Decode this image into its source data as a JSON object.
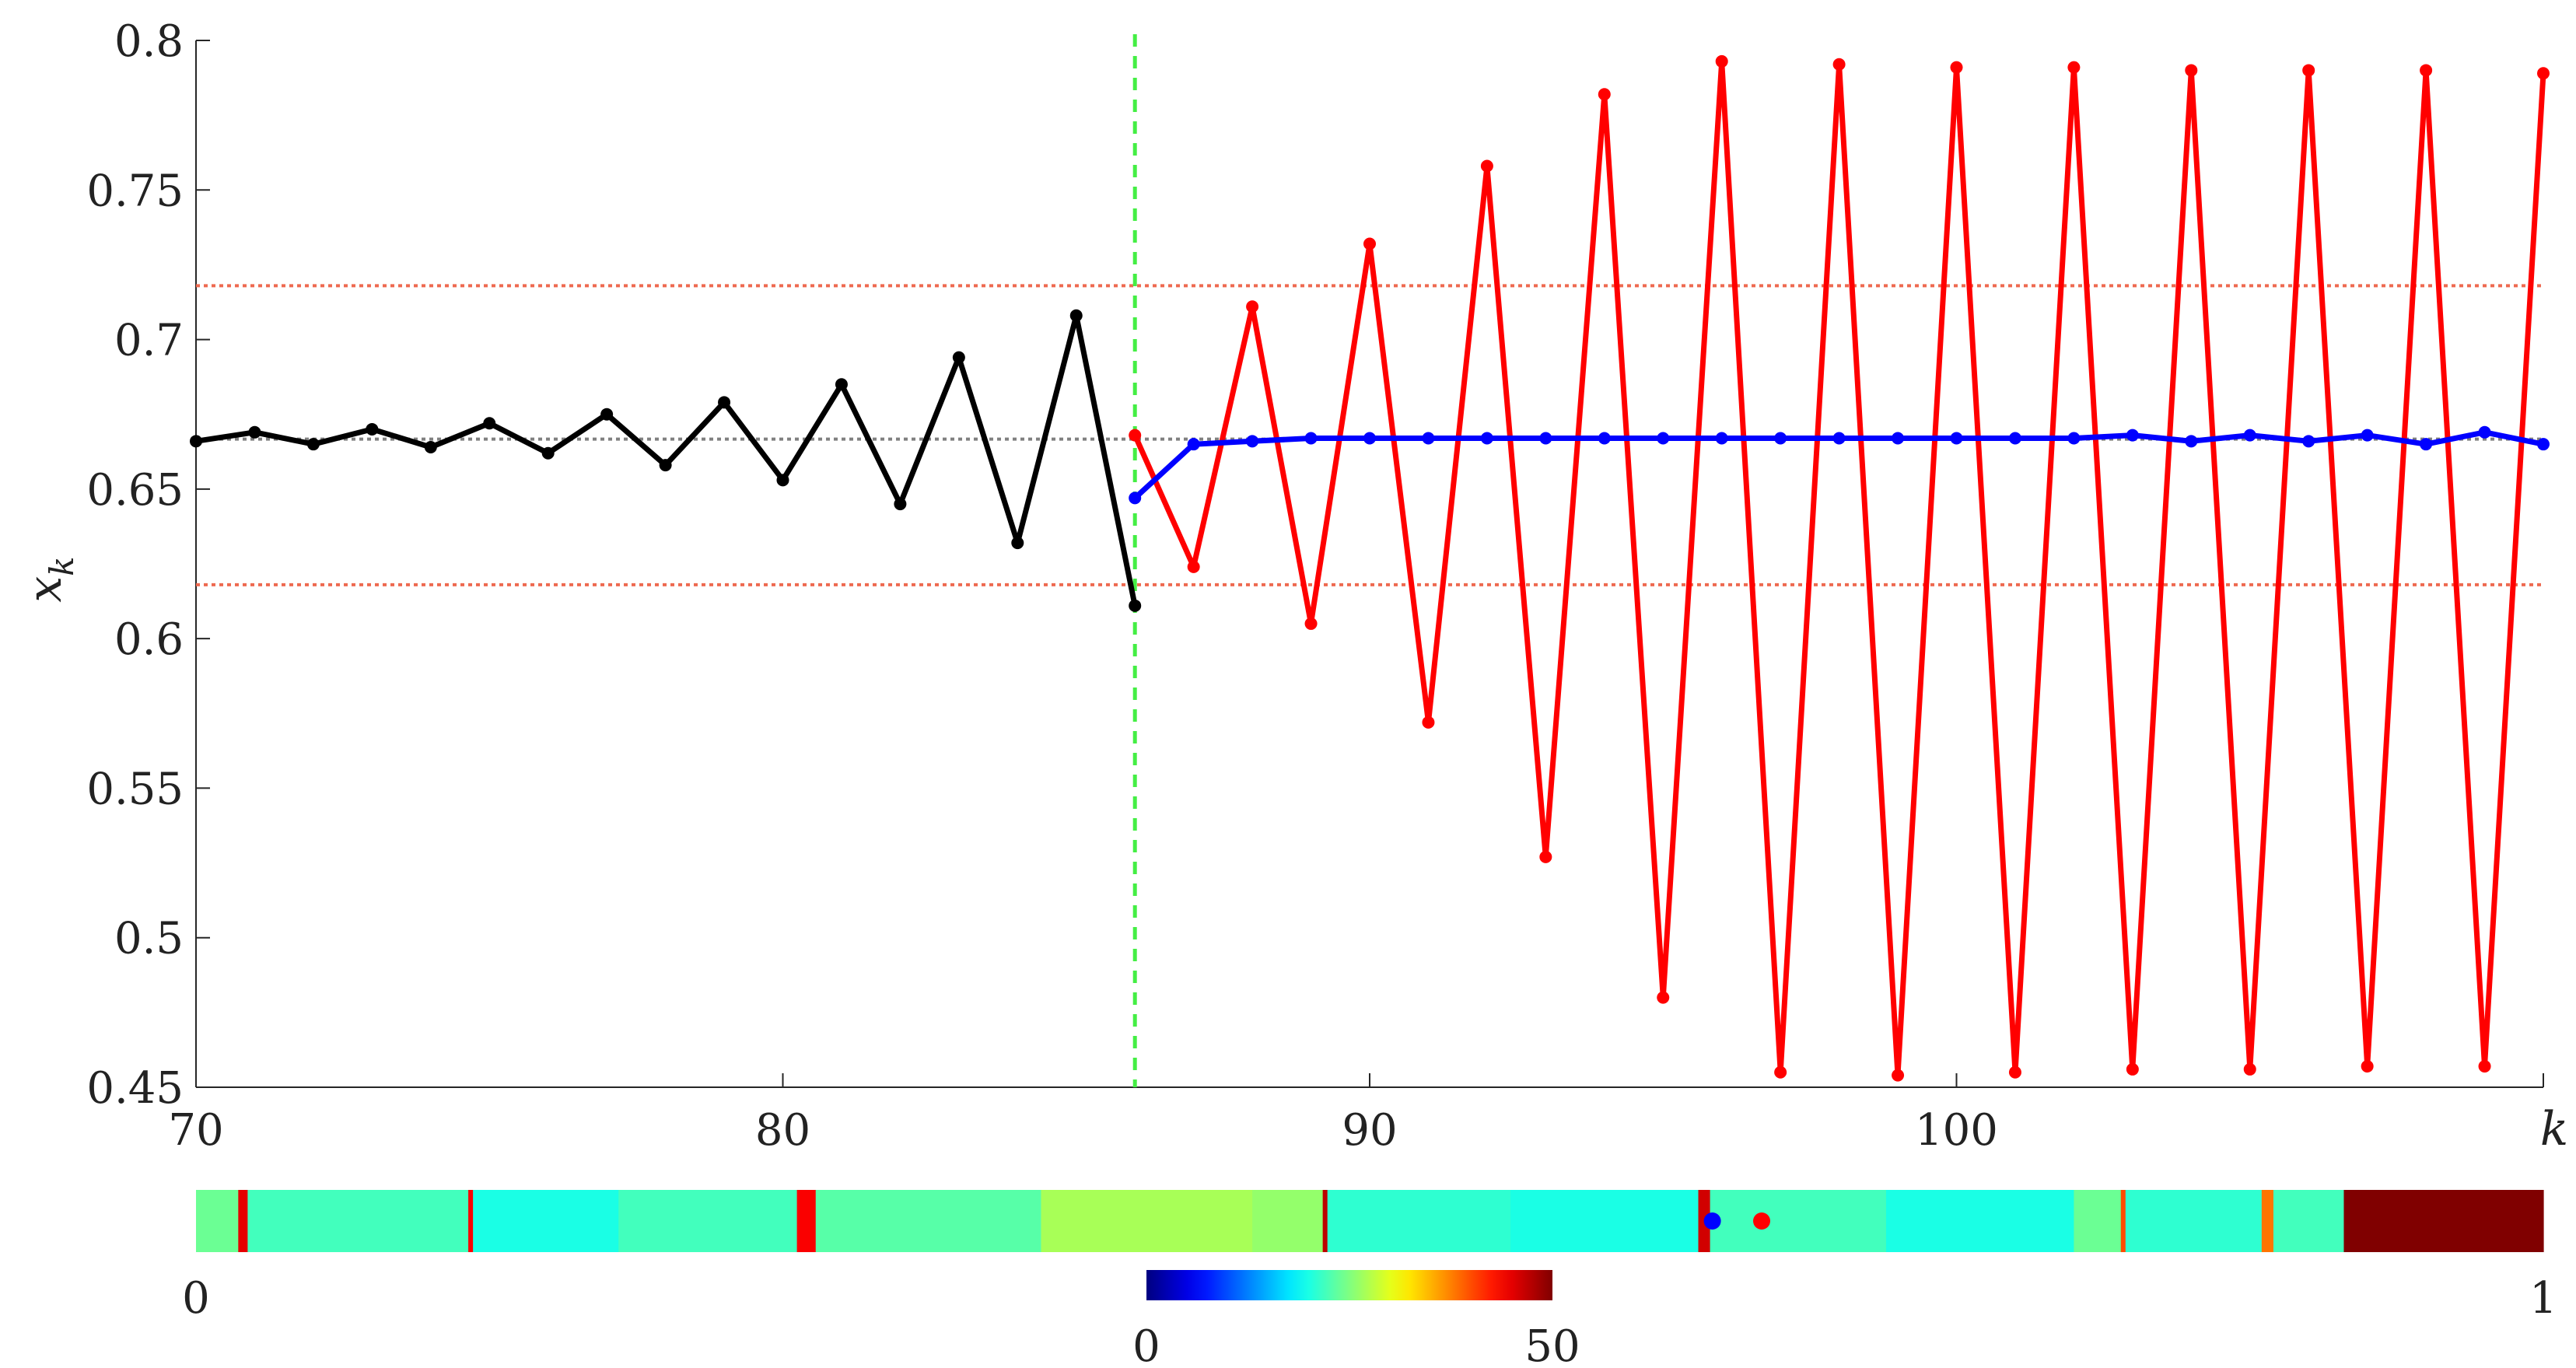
{
  "chart_data": [
    {
      "type": "line",
      "xlabel": "k",
      "ylabel": "x_k",
      "ylabel_parts": {
        "base": "x",
        "sub": "k"
      },
      "xlim": [
        70,
        110
      ],
      "ylim": [
        0.45,
        0.8
      ],
      "x_ticks": [
        70,
        80,
        90,
        100
      ],
      "x_tick_labels": [
        "70",
        "80",
        "90",
        "100"
      ],
      "y_ticks": [
        0.45,
        0.5,
        0.55,
        0.6,
        0.65,
        0.7,
        0.75,
        0.8
      ],
      "y_tick_labels": [
        "0.45",
        "0.5",
        "0.55",
        "0.6",
        "0.65",
        "0.7",
        "0.75",
        "0.8"
      ],
      "grid": false,
      "reference_lines": [
        {
          "orientation": "horizontal",
          "y": 0.6667,
          "color": "#808080",
          "style": "dotted"
        },
        {
          "orientation": "horizontal",
          "y": 0.718,
          "color": "#ee6a50",
          "style": "dotted"
        },
        {
          "orientation": "horizontal",
          "y": 0.618,
          "color": "#ee6a50",
          "style": "dotted"
        },
        {
          "orientation": "vertical",
          "x": 86,
          "color": "#44ee44",
          "style": "dashed"
        }
      ],
      "series": [
        {
          "color": "#000000",
          "x": [
            70,
            71,
            72,
            73,
            74,
            75,
            76,
            77,
            78,
            79,
            80,
            81,
            82,
            83,
            84,
            85,
            86
          ],
          "y": [
            0.666,
            0.669,
            0.665,
            0.67,
            0.664,
            0.672,
            0.662,
            0.675,
            0.658,
            0.679,
            0.653,
            0.685,
            0.645,
            0.694,
            0.632,
            0.708,
            0.611
          ]
        },
        {
          "color": "#ff0000",
          "x": [
            86,
            87,
            88,
            89,
            90,
            91,
            92,
            93,
            94,
            95,
            96,
            97,
            98,
            99,
            100,
            101,
            102,
            103,
            104,
            105,
            106,
            107,
            108,
            109,
            110
          ],
          "y": [
            0.668,
            0.624,
            0.711,
            0.605,
            0.732,
            0.572,
            0.758,
            0.527,
            0.782,
            0.48,
            0.793,
            0.455,
            0.792,
            0.454,
            0.791,
            0.455,
            0.791,
            0.456,
            0.79,
            0.456,
            0.79,
            0.457,
            0.79,
            0.457,
            0.789
          ]
        },
        {
          "color": "#0000ff",
          "x": [
            86,
            87,
            88,
            89,
            90,
            91,
            92,
            93,
            94,
            95,
            96,
            97,
            98,
            99,
            100,
            101,
            102,
            103,
            104,
            105,
            106,
            107,
            108,
            109,
            110
          ],
          "y": [
            0.647,
            0.665,
            0.666,
            0.667,
            0.667,
            0.667,
            0.667,
            0.667,
            0.667,
            0.667,
            0.667,
            0.667,
            0.667,
            0.667,
            0.667,
            0.667,
            0.667,
            0.668,
            0.666,
            0.668,
            0.666,
            0.668,
            0.665,
            0.669,
            0.665
          ]
        }
      ]
    },
    {
      "type": "heatmap",
      "xlim": [
        0,
        1
      ],
      "x_tick_labels": [
        "0",
        "1"
      ],
      "colormap": "jet",
      "color_range": [
        0,
        50
      ],
      "colorbar_tick_labels": [
        "0",
        "50"
      ],
      "segments": [
        {
          "from": 0.0,
          "to": 0.018,
          "value": 24
        },
        {
          "from": 0.018,
          "to": 0.022,
          "value": 45
        },
        {
          "from": 0.022,
          "to": 0.116,
          "value": 22
        },
        {
          "from": 0.116,
          "to": 0.118,
          "value": 44
        },
        {
          "from": 0.118,
          "to": 0.18,
          "value": 20
        },
        {
          "from": 0.18,
          "to": 0.256,
          "value": 22
        },
        {
          "from": 0.256,
          "to": 0.264,
          "value": 44
        },
        {
          "from": 0.264,
          "to": 0.36,
          "value": 23
        },
        {
          "from": 0.36,
          "to": 0.45,
          "value": 27
        },
        {
          "from": 0.45,
          "to": 0.48,
          "value": 26
        },
        {
          "from": 0.48,
          "to": 0.482,
          "value": 47
        },
        {
          "from": 0.482,
          "to": 0.56,
          "value": 21
        },
        {
          "from": 0.56,
          "to": 0.64,
          "value": 20
        },
        {
          "from": 0.64,
          "to": 0.645,
          "value": 46
        },
        {
          "from": 0.645,
          "to": 0.72,
          "value": 22
        },
        {
          "from": 0.72,
          "to": 0.8,
          "value": 20
        },
        {
          "from": 0.8,
          "to": 0.82,
          "value": 24
        },
        {
          "from": 0.82,
          "to": 0.822,
          "value": 40
        },
        {
          "from": 0.822,
          "to": 0.88,
          "value": 21
        },
        {
          "from": 0.88,
          "to": 0.885,
          "value": 38
        },
        {
          "from": 0.885,
          "to": 0.915,
          "value": 22
        },
        {
          "from": 0.915,
          "to": 1.0,
          "value": 50
        }
      ],
      "markers": [
        {
          "x": 0.646,
          "color": "#0000ff"
        },
        {
          "x": 0.667,
          "color": "#ff0000"
        }
      ]
    }
  ]
}
